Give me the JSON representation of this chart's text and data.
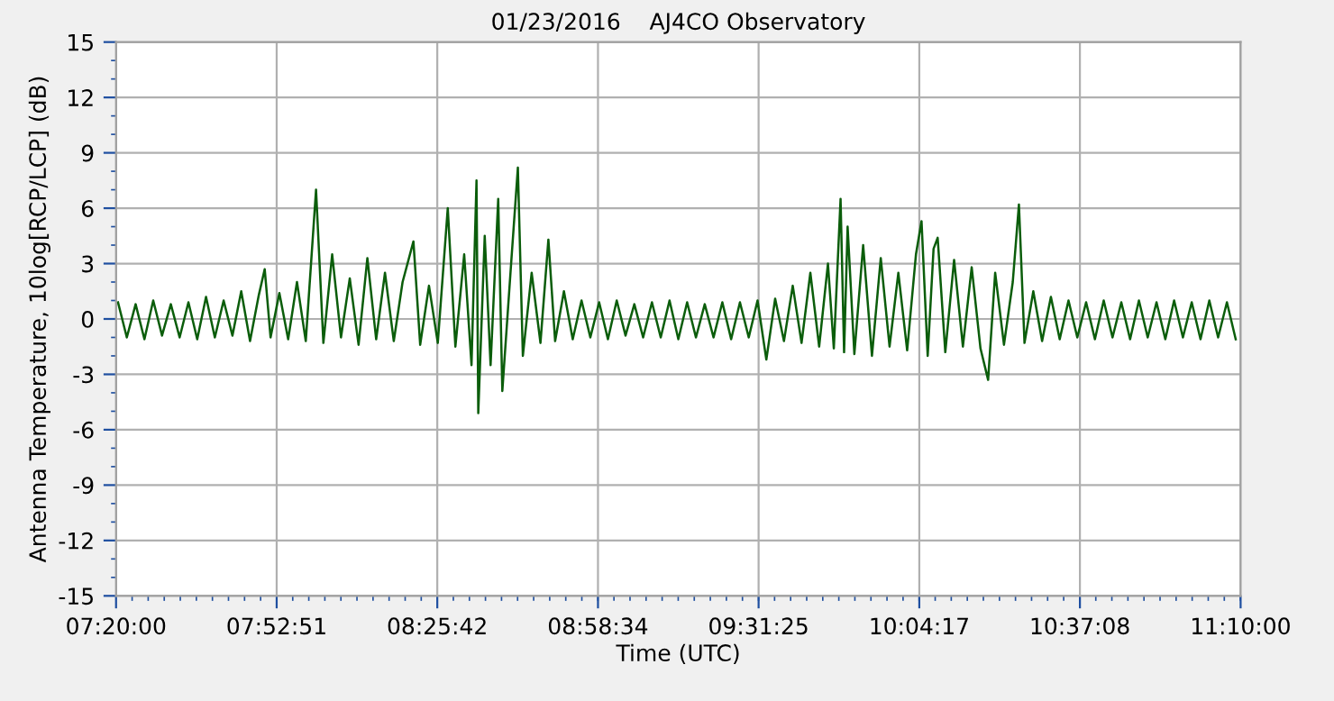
{
  "chart_data": {
    "type": "line",
    "title": "01/23/2016    AJ4CO Observatory",
    "xlabel": "Time (UTC)",
    "ylabel": "Antenna Temperature, 10log[RCP/LCP] (dB)",
    "xlim": [
      7.3333,
      11.1667
    ],
    "xticks": [
      {
        "value": 7.3333,
        "label": "07:20:00"
      },
      {
        "value": 7.8808,
        "label": "07:52:51"
      },
      {
        "value": 8.4283,
        "label": "08:25:42"
      },
      {
        "value": 8.9761,
        "label": "08:58:34"
      },
      {
        "value": 9.5236,
        "label": "09:31:25"
      },
      {
        "value": 10.0714,
        "label": "10:04:17"
      },
      {
        "value": 10.6189,
        "label": "10:37:08"
      },
      {
        "value": 11.1667,
        "label": "11:10:00"
      }
    ],
    "ylim": [
      -15,
      15
    ],
    "yticks": [
      -15,
      -12,
      -9,
      -6,
      -3,
      0,
      3,
      6,
      9,
      12,
      15
    ],
    "grid": true,
    "marker": "none",
    "line_style": "solid",
    "series": [
      {
        "color": "#0b5d0b",
        "x": [
          7.34,
          7.37,
          7.4,
          7.43,
          7.46,
          7.49,
          7.52,
          7.55,
          7.58,
          7.61,
          7.64,
          7.67,
          7.7,
          7.73,
          7.76,
          7.79,
          7.82,
          7.84,
          7.86,
          7.89,
          7.92,
          7.95,
          7.98,
          8.015,
          8.04,
          8.07,
          8.1,
          8.13,
          8.16,
          8.19,
          8.22,
          8.25,
          8.28,
          8.31,
          8.347,
          8.37,
          8.4,
          8.43,
          8.464,
          8.49,
          8.52,
          8.545,
          8.562,
          8.568,
          8.59,
          8.61,
          8.636,
          8.65,
          8.68,
          8.703,
          8.72,
          8.75,
          8.78,
          8.807,
          8.83,
          8.86,
          8.89,
          8.92,
          8.95,
          8.98,
          9.01,
          9.04,
          9.07,
          9.1,
          9.13,
          9.16,
          9.19,
          9.22,
          9.25,
          9.28,
          9.31,
          9.34,
          9.37,
          9.4,
          9.43,
          9.46,
          9.49,
          9.52,
          9.55,
          9.58,
          9.61,
          9.64,
          9.67,
          9.7,
          9.73,
          9.76,
          9.78,
          9.803,
          9.815,
          9.827,
          9.85,
          9.88,
          9.91,
          9.94,
          9.97,
          10.0,
          10.03,
          10.06,
          10.079,
          10.1,
          10.12,
          10.134,
          10.16,
          10.19,
          10.22,
          10.25,
          10.28,
          10.306,
          10.33,
          10.36,
          10.39,
          10.411,
          10.43,
          10.46,
          10.49,
          10.52,
          10.55,
          10.58,
          10.61,
          10.64,
          10.67,
          10.7,
          10.73,
          10.76,
          10.79,
          10.82,
          10.85,
          10.88,
          10.91,
          10.94,
          10.97,
          11.0,
          11.03,
          11.06,
          11.09,
          11.12,
          11.15
        ],
        "values": [
          0.9,
          -1.0,
          0.8,
          -1.1,
          1.0,
          -0.9,
          0.8,
          -1.0,
          0.9,
          -1.1,
          1.2,
          -1.0,
          1.0,
          -0.9,
          1.5,
          -1.2,
          1.3,
          2.7,
          -1.0,
          1.4,
          -1.1,
          2.0,
          -1.2,
          7.0,
          -1.3,
          3.5,
          -1.0,
          2.2,
          -1.4,
          3.3,
          -1.1,
          2.5,
          -1.2,
          2.0,
          4.2,
          -1.4,
          1.8,
          -1.3,
          6.0,
          -1.5,
          3.5,
          -2.5,
          7.5,
          -5.1,
          4.5,
          -2.5,
          6.5,
          -3.9,
          3.0,
          8.2,
          -2.0,
          2.5,
          -1.3,
          4.3,
          -1.2,
          1.5,
          -1.1,
          1.0,
          -1.0,
          0.9,
          -1.1,
          1.0,
          -0.9,
          0.8,
          -1.0,
          0.9,
          -1.0,
          1.0,
          -1.1,
          0.9,
          -1.0,
          0.8,
          -1.0,
          0.9,
          -1.1,
          0.9,
          -1.0,
          1.0,
          -2.2,
          1.1,
          -1.2,
          1.8,
          -1.3,
          2.5,
          -1.5,
          3.0,
          -1.6,
          6.5,
          -1.8,
          5.0,
          -1.9,
          4.0,
          -2.0,
          3.3,
          -1.5,
          2.5,
          -1.7,
          3.5,
          5.3,
          -2.0,
          3.8,
          4.4,
          -1.8,
          3.2,
          -1.5,
          2.8,
          -1.6,
          -3.3,
          2.5,
          -1.4,
          2.0,
          6.2,
          -1.3,
          1.5,
          -1.2,
          1.2,
          -1.1,
          1.0,
          -1.0,
          0.9,
          -1.1,
          1.0,
          -1.0,
          0.9,
          -1.1,
          1.0,
          -1.0,
          0.9,
          -1.1,
          1.0,
          -1.0,
          0.9,
          -1.1,
          1.0,
          -1.0,
          0.9,
          -1.1
        ]
      }
    ]
  }
}
